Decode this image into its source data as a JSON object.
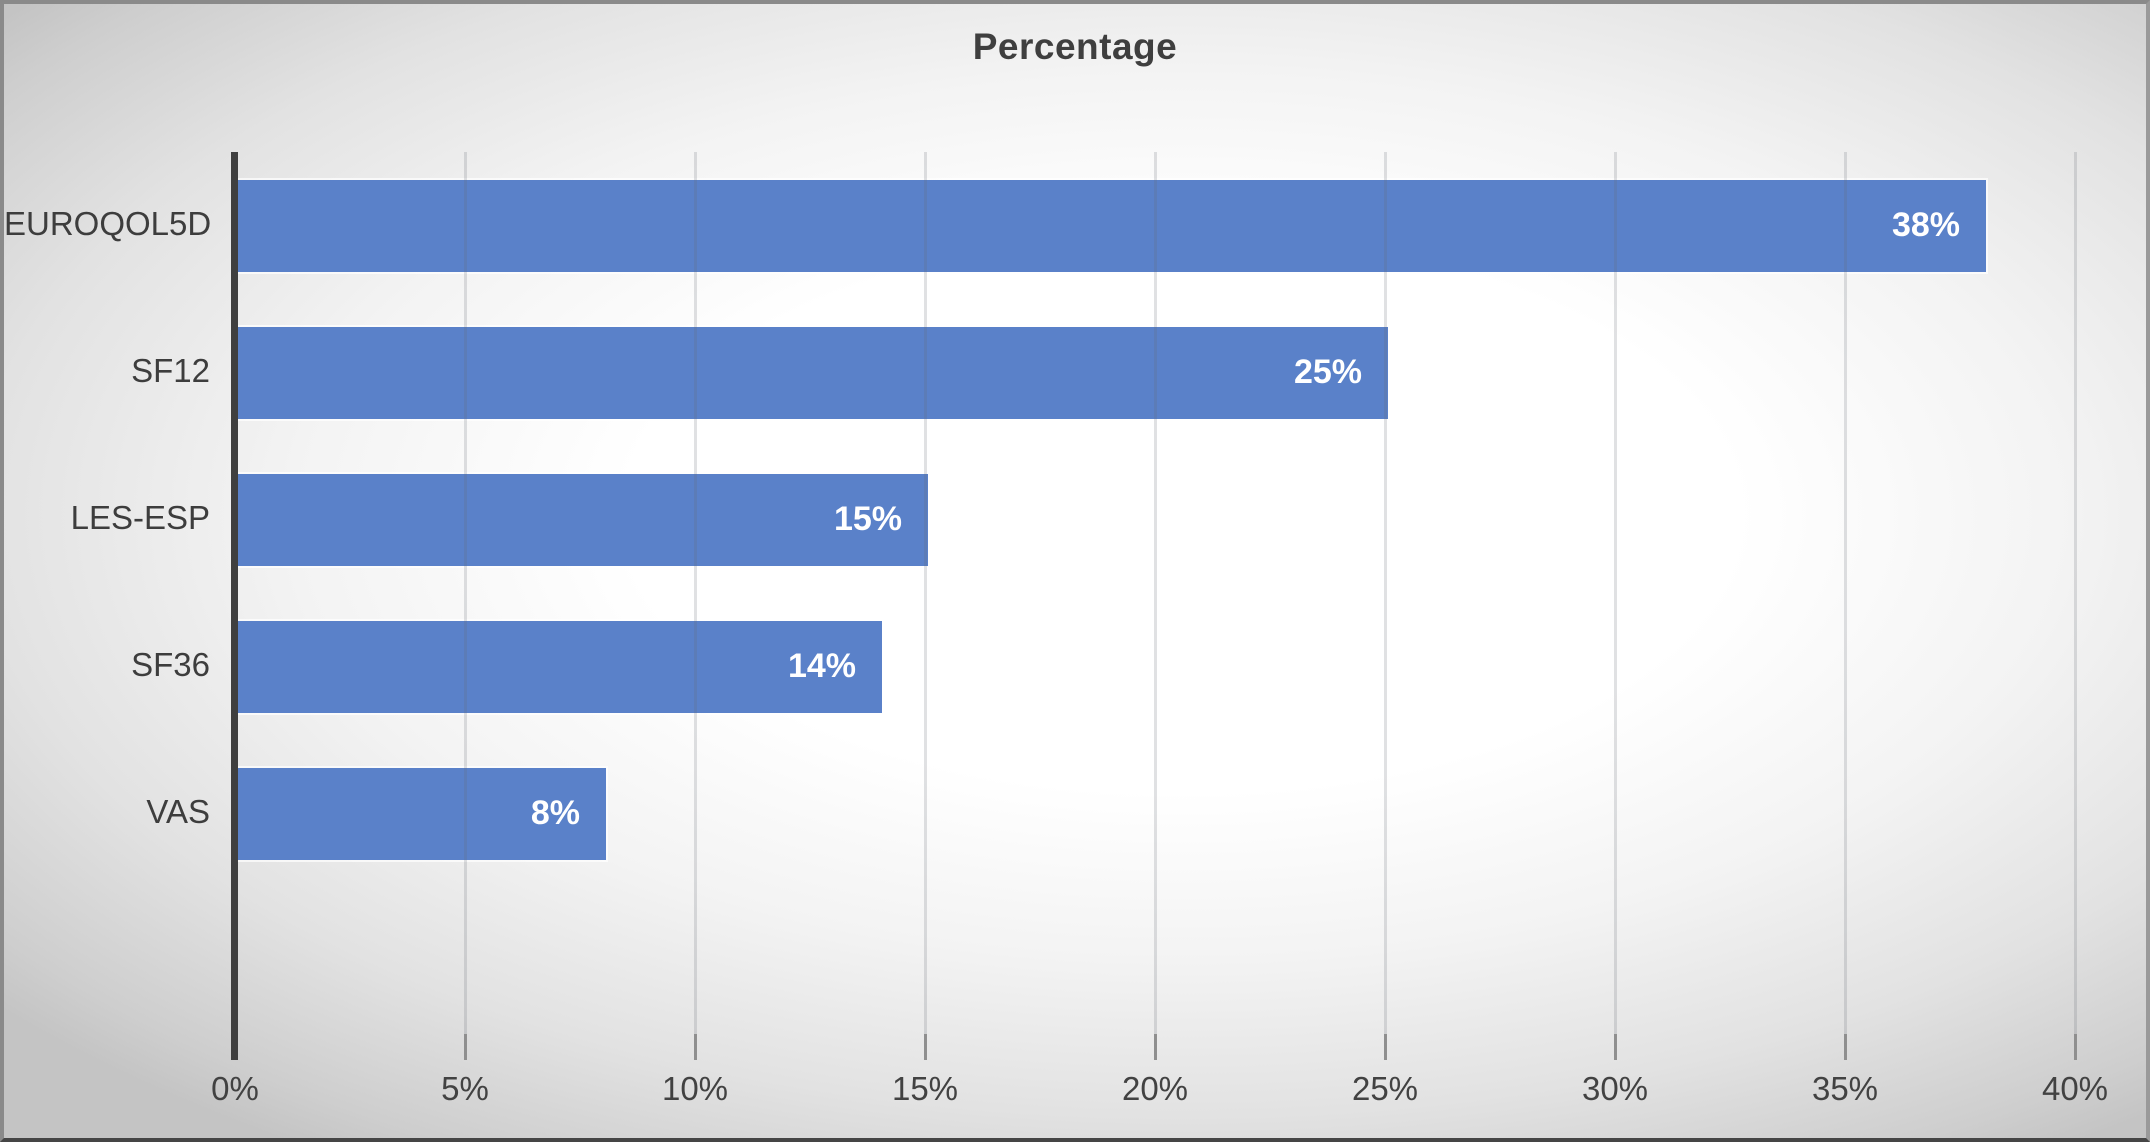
{
  "figure": {
    "kind": "scanned chart figure"
  },
  "chart_data": {
    "type": "bar",
    "orientation": "horizontal",
    "title": "Percentage",
    "categories": [
      "EUROQOL5D",
      "SF12",
      "LES-ESP",
      "SF36",
      "VAS"
    ],
    "values": [
      38,
      25,
      15,
      14,
      8
    ],
    "data_labels": [
      "38%",
      "25%",
      "15%",
      "14%",
      "8%"
    ],
    "xlabel": "",
    "ylabel": "",
    "x_axis": {
      "min": 0,
      "max": 40,
      "step": 5,
      "tick_labels": [
        "0%",
        "5%",
        "10%",
        "15%",
        "20%",
        "25%",
        "30%",
        "35%",
        "40%"
      ]
    },
    "legend": "none",
    "grid": "vertical-only",
    "data_label_position": "inside-end",
    "colors": {
      "bar": "#5a81c9",
      "data_label": "#ffffff",
      "axis_line": "#3f3f3f",
      "gridline": "#d7d9db",
      "tick": "#8f8f8f",
      "text": "#3f3f3f",
      "frame_border": "#8a8a8a"
    }
  }
}
